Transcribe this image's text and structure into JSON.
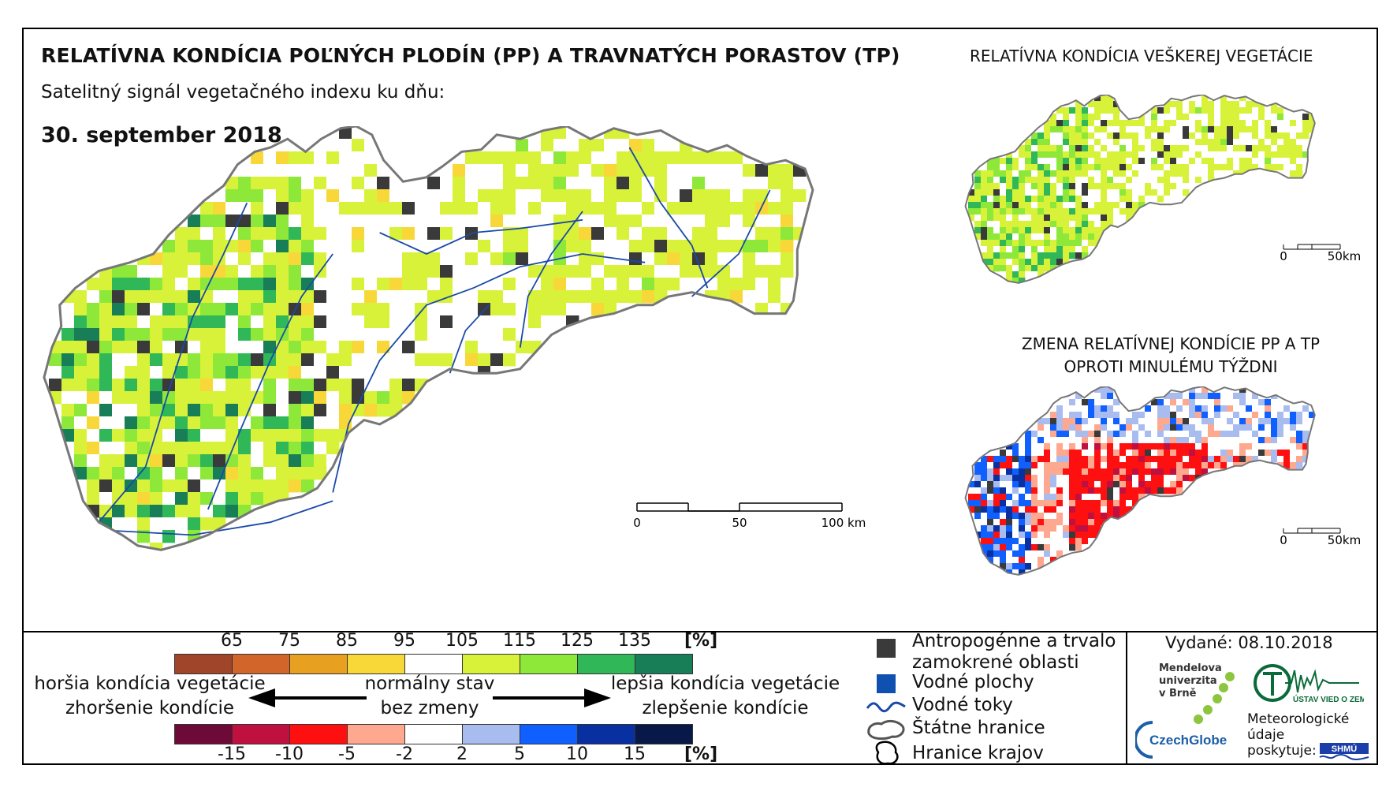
{
  "header": {
    "title": "RELATÍVNA KONDÍCIA POĽNÝCH PLODÍN (PP) A TRAVNATÝCH PORASTOV (TP)",
    "subtitle": "Satelitný signál vegetačného indexu ku dňu:",
    "date": "30. september 2018"
  },
  "side_panels": {
    "all_vegetation_title": "RELATÍVNA KONDÍCIA VEŠKEREJ VEGETÁCIE",
    "change_title_line1": "ZMENA RELATÍVNEJ KONDÍCIE PP A TP",
    "change_title_line2": "OPROTI MINULÉMU TÝŽDNI"
  },
  "main_scalebar": {
    "labels": [
      "0",
      "50",
      "100 km"
    ]
  },
  "small_scalebar": {
    "labels": [
      "0",
      "50km"
    ]
  },
  "legend": {
    "condition_ticks": [
      "65",
      "75",
      "85",
      "95",
      "105",
      "115",
      "125",
      "135"
    ],
    "condition_colors": [
      "#a0452a",
      "#d2652a",
      "#e8a020",
      "#f8d838",
      "#ffffff",
      "#d8f23a",
      "#8ee83a",
      "#30b858",
      "#187e58"
    ],
    "change_ticks": [
      "-15",
      "-10",
      "-5",
      "-2",
      "2",
      "5",
      "10",
      "15"
    ],
    "change_colors": [
      "#6e0a38",
      "#c01040",
      "#ff1010",
      "#ffa890",
      "#ffffff",
      "#a8bcf0",
      "#1060ff",
      "#0830a0",
      "#081848"
    ],
    "unit": "[%]",
    "worse_line1": "horšia kondícia vegetácie",
    "worse_line2": "zhoršenie kondície",
    "normal_line1": "normálny stav",
    "normal_line2": "bez zmeny",
    "better_line1": "lepšia kondícia vegetácie",
    "better_line2": "zlepšenie kondície"
  },
  "map_legend": {
    "urban_line1": "Antropogénne a trvalo",
    "urban_line2": "zamokrené oblasti",
    "water": "Vodné plochy",
    "rivers": "Vodné toky",
    "border": "Štátne hranice",
    "regions": "Hranice krajov",
    "urban_color": "#3a3a3a",
    "water_color": "#1050b0",
    "river_color": "#1a4aa8"
  },
  "footer": {
    "issued": "Vydané: 08.10.2018",
    "mendel": "Mendelova univerzita v Brně",
    "czechglobe": "CzechGlobe",
    "ustav": "ÚSTAV VIED O ZEMI",
    "meteo_line1": "Meteorologické",
    "meteo_line2": "údaje",
    "meteo_line3": "poskytuje:",
    "shmu": "SHMÚ"
  }
}
